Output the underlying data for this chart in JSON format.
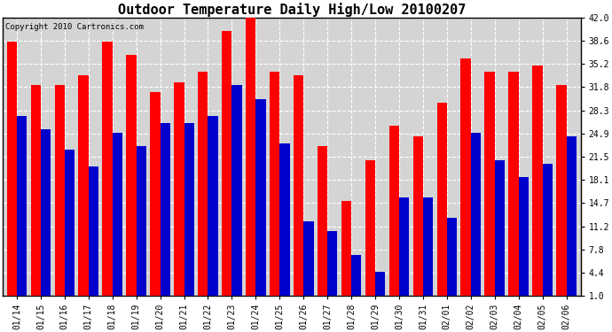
{
  "title": "Outdoor Temperature Daily High/Low 20100207",
  "copyright": "Copyright 2010 Cartronics.com",
  "labels": [
    "01/14",
    "01/15",
    "01/16",
    "01/17",
    "01/18",
    "01/19",
    "01/20",
    "01/21",
    "01/22",
    "01/23",
    "01/24",
    "01/25",
    "01/26",
    "01/27",
    "01/28",
    "01/29",
    "01/30",
    "01/31",
    "02/01",
    "02/02",
    "02/03",
    "02/04",
    "02/05",
    "02/06"
  ],
  "highs": [
    38.5,
    32.0,
    32.0,
    33.5,
    38.5,
    36.5,
    31.0,
    32.5,
    34.0,
    40.0,
    42.0,
    34.0,
    33.5,
    23.0,
    15.0,
    21.0,
    26.0,
    24.5,
    29.5,
    36.0,
    34.0,
    34.0,
    35.0,
    32.0
  ],
  "lows": [
    27.5,
    25.5,
    22.5,
    20.0,
    25.0,
    23.0,
    26.5,
    26.5,
    27.5,
    32.0,
    30.0,
    23.5,
    12.0,
    10.5,
    7.0,
    4.5,
    15.5,
    15.5,
    12.5,
    25.0,
    21.0,
    18.5,
    20.5,
    24.5
  ],
  "high_color": "#ff0000",
  "low_color": "#0000cc",
  "background_color": "#ffffff",
  "plot_bg_color": "#ffffff",
  "grid_color": "#ffffff",
  "ylim": [
    1.0,
    42.0
  ],
  "yticks": [
    1.0,
    4.4,
    7.8,
    11.2,
    14.7,
    18.1,
    21.5,
    24.9,
    28.3,
    31.8,
    35.2,
    38.6,
    42.0
  ],
  "title_fontsize": 11,
  "tick_fontsize": 7,
  "copyright_fontsize": 6.5
}
